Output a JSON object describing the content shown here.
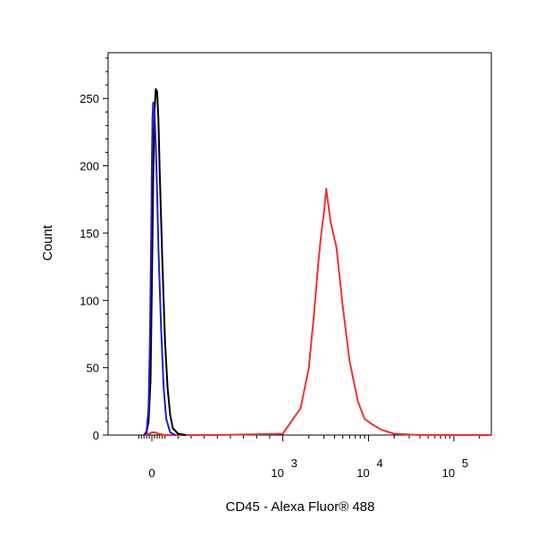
{
  "chart_data": {
    "type": "line",
    "title": "",
    "xlabel": "CD45 - Alexa Fluor® 488",
    "ylabel": "Count",
    "x_scale": "biexponential",
    "ylim": [
      0,
      270
    ],
    "y_ticks": [
      "0",
      "50",
      "100",
      "150",
      "200",
      "250"
    ],
    "x_ticks": [
      {
        "base": "0",
        "exp": ""
      },
      {
        "base": "10",
        "exp": "3"
      },
      {
        "base": "10",
        "exp": "4"
      },
      {
        "base": "10",
        "exp": "5"
      }
    ],
    "grid": false,
    "legend": "none",
    "series": [
      {
        "color": "#000000",
        "x": [
          -60,
          -40,
          -25,
          -10,
          0,
          10,
          20,
          30,
          40,
          50,
          60,
          80,
          100,
          120,
          140,
          160,
          200,
          260
        ],
        "y": [
          0,
          2,
          10,
          40,
          110,
          190,
          240,
          257,
          255,
          235,
          195,
          130,
          70,
          35,
          15,
          5,
          1,
          0
        ]
      },
      {
        "color": "#1f1fcc",
        "x": [
          -60,
          -40,
          -25,
          -15,
          -5,
          0,
          5,
          10,
          20,
          30,
          40,
          50,
          70,
          90,
          110,
          140,
          180
        ],
        "y": [
          0,
          3,
          20,
          70,
          150,
          200,
          235,
          247,
          240,
          215,
          180,
          140,
          80,
          35,
          12,
          2,
          0
        ]
      },
      {
        "color": "#ee3333",
        "x": [
          -60,
          -20,
          0,
          20,
          50,
          100,
          200,
          500,
          1000,
          1600,
          2000,
          2300,
          2600,
          2800,
          3000,
          3200,
          3600,
          4200,
          5000,
          6000,
          7500,
          9000,
          11000,
          14000,
          20000,
          40000,
          100000,
          300000
        ],
        "y": [
          0,
          1,
          2,
          2,
          1,
          0,
          0,
          0,
          1,
          20,
          50,
          90,
          130,
          150,
          165,
          183,
          158,
          140,
          95,
          55,
          25,
          12,
          8,
          4,
          1,
          0,
          0,
          0
        ]
      }
    ]
  }
}
